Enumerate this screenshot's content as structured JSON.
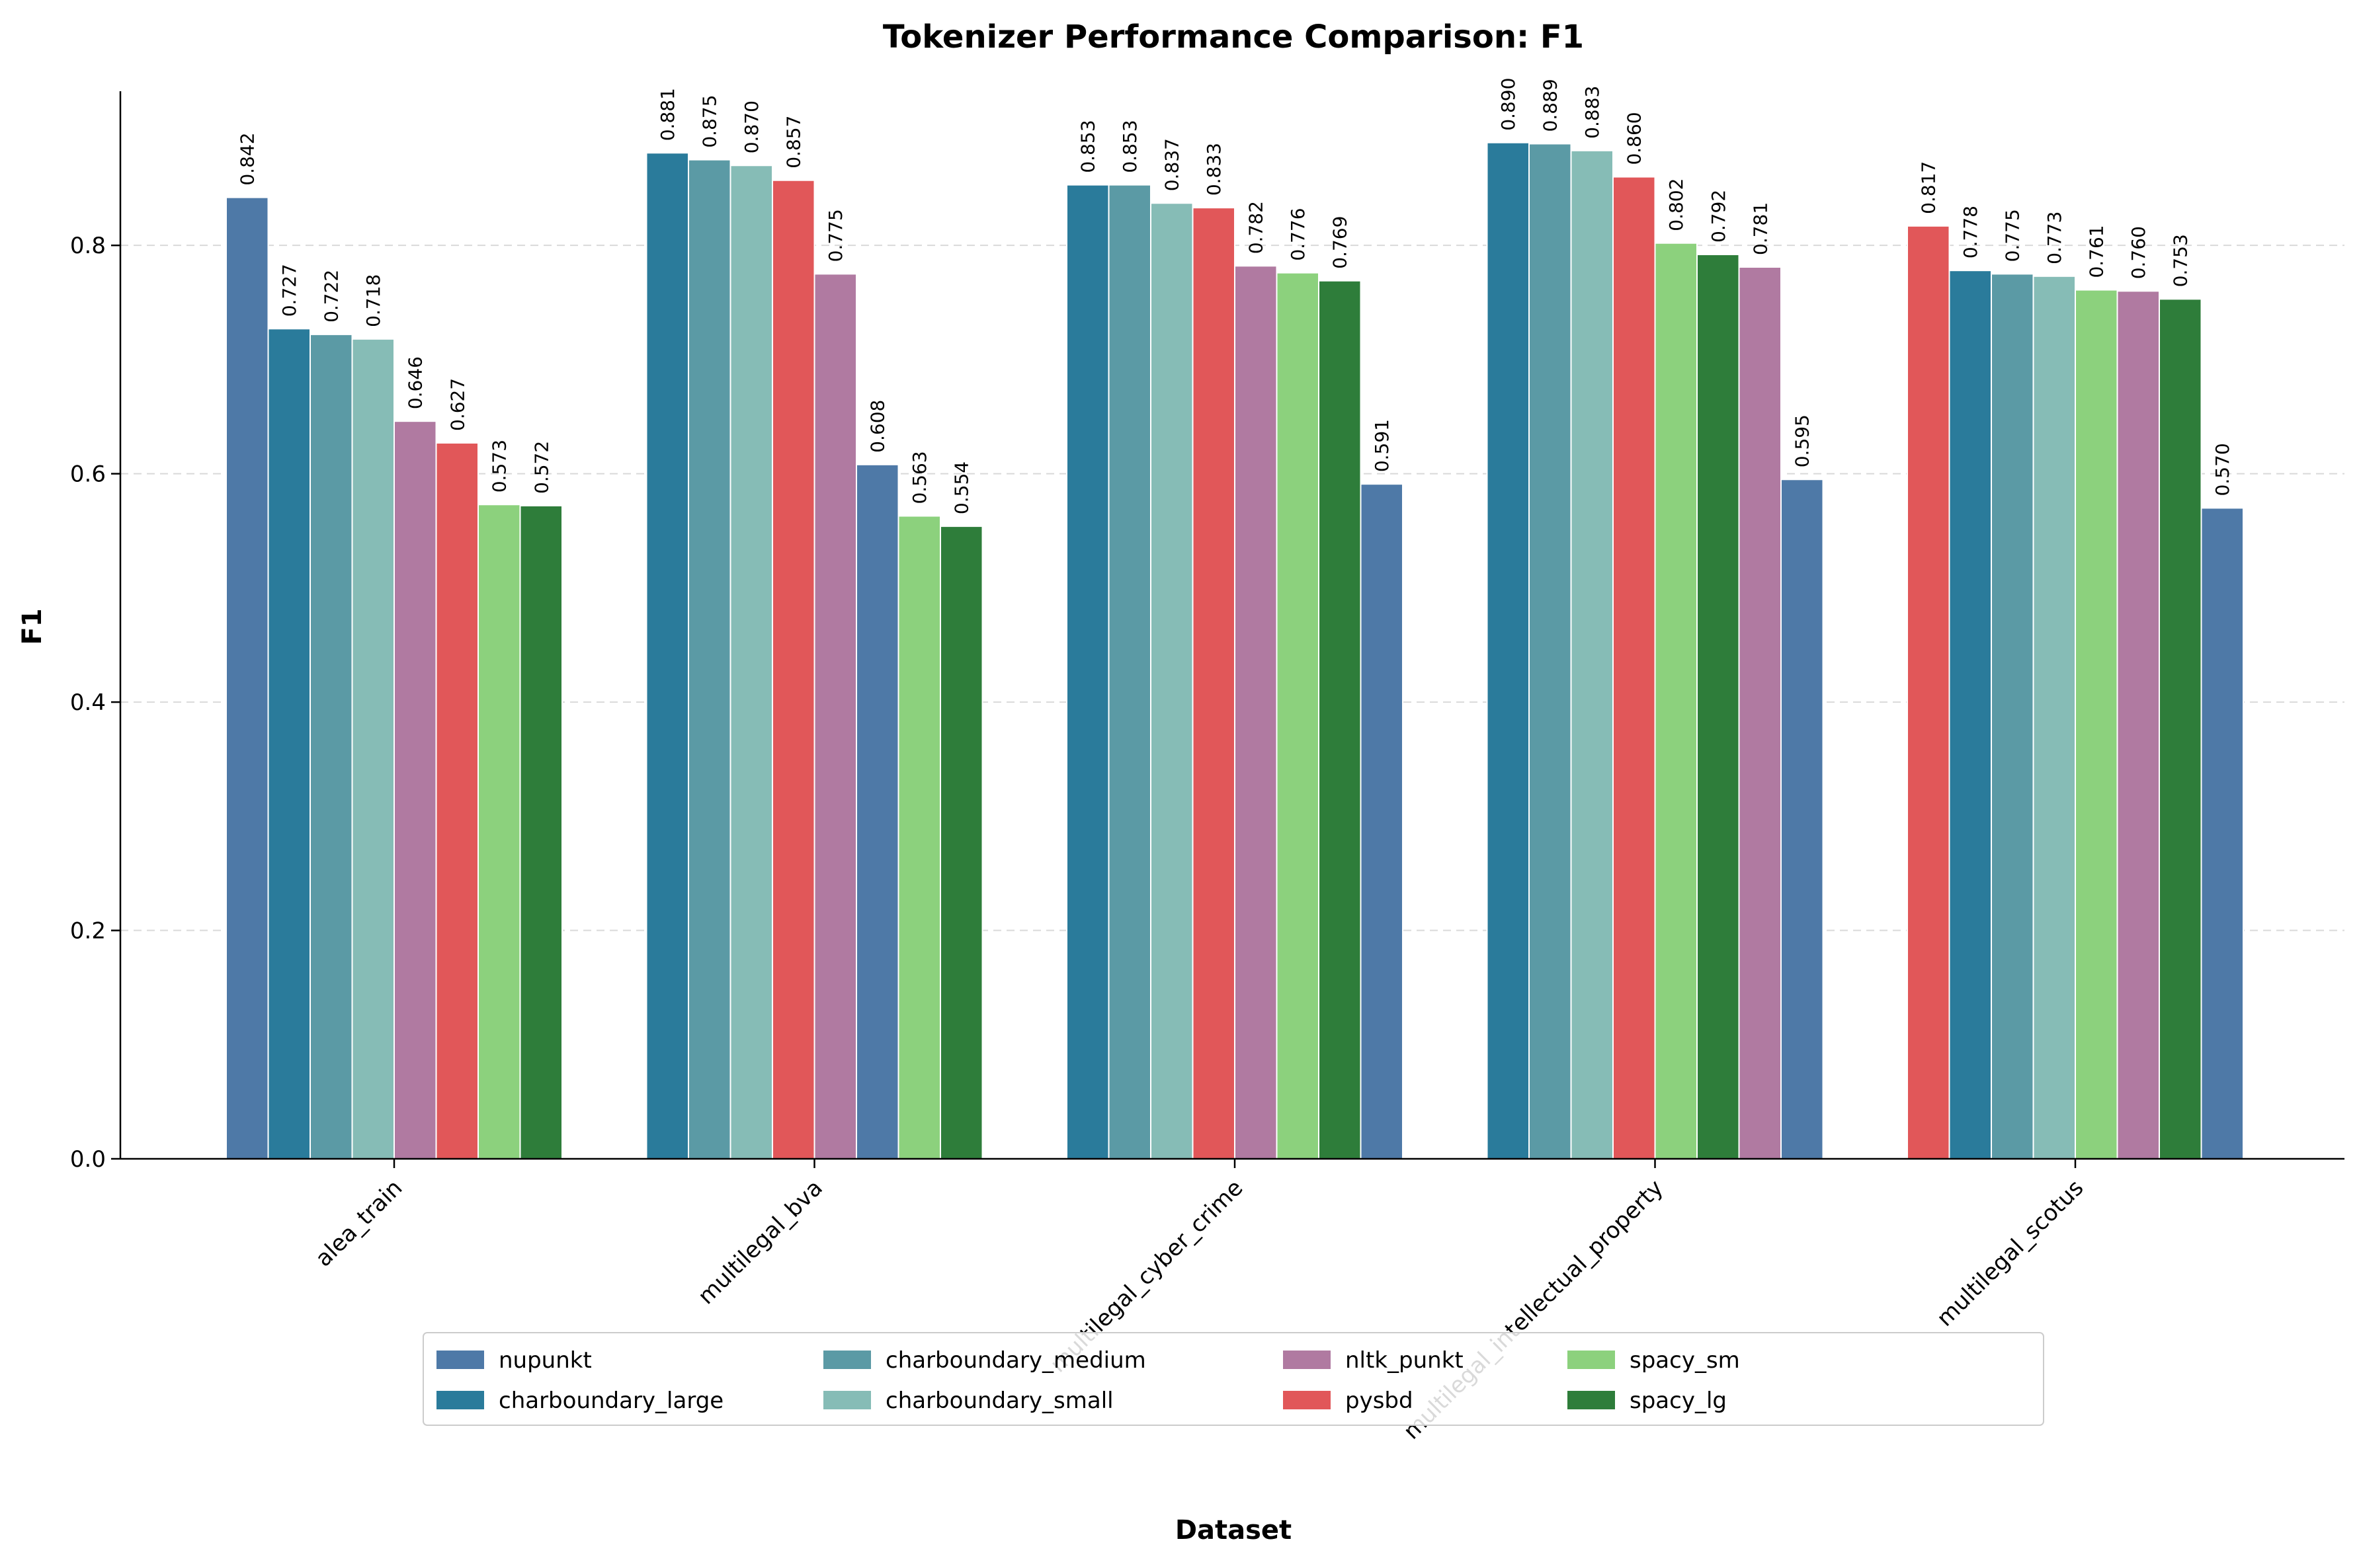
{
  "chart_data": {
    "type": "bar",
    "title": "Tokenizer Performance Comparison: F1",
    "xlabel": "Dataset",
    "ylabel": "F1",
    "ylim": [
      0,
      0.935
    ],
    "yticks": [
      "0.0",
      "0.2",
      "0.4",
      "0.6",
      "0.8"
    ],
    "grid": "y, dashed",
    "legend_position": "below plot, 5 columns",
    "legend": [
      {
        "name": "nupunkt",
        "color": "#4e79a7"
      },
      {
        "name": "charboundary_large",
        "color": "#2a7b9b"
      },
      {
        "name": "charboundary_medium",
        "color": "#5b9aa5"
      },
      {
        "name": "charboundary_small",
        "color": "#86bcb6"
      },
      {
        "name": "nltk_punkt",
        "color": "#b07aa1"
      },
      {
        "name": "pysbd",
        "color": "#e15759"
      },
      {
        "name": "spacy_sm",
        "color": "#8cd17d"
      },
      {
        "name": "spacy_lg",
        "color": "#2e7d3a"
      }
    ],
    "groups": [
      {
        "category": "alea_train",
        "bars": [
          {
            "series": "nupunkt",
            "value": 0.842,
            "label": "0.842"
          },
          {
            "series": "charboundary_large",
            "value": 0.727,
            "label": "0.727"
          },
          {
            "series": "charboundary_medium",
            "value": 0.722,
            "label": "0.722"
          },
          {
            "series": "charboundary_small",
            "value": 0.718,
            "label": "0.718"
          },
          {
            "series": "nltk_punkt",
            "value": 0.646,
            "label": "0.646"
          },
          {
            "series": "pysbd",
            "value": 0.627,
            "label": "0.627"
          },
          {
            "series": "spacy_sm",
            "value": 0.573,
            "label": "0.573"
          },
          {
            "series": "spacy_lg",
            "value": 0.572,
            "label": "0.572"
          }
        ]
      },
      {
        "category": "multilegal_bva",
        "bars": [
          {
            "series": "charboundary_large",
            "value": 0.881,
            "label": "0.881"
          },
          {
            "series": "charboundary_medium",
            "value": 0.875,
            "label": "0.875"
          },
          {
            "series": "charboundary_small",
            "value": 0.87,
            "label": "0.870"
          },
          {
            "series": "pysbd",
            "value": 0.857,
            "label": "0.857"
          },
          {
            "series": "nltk_punkt",
            "value": 0.775,
            "label": "0.775"
          },
          {
            "series": "nupunkt",
            "value": 0.608,
            "label": "0.608"
          },
          {
            "series": "spacy_sm",
            "value": 0.563,
            "label": "0.563"
          },
          {
            "series": "spacy_lg",
            "value": 0.554,
            "label": "0.554"
          }
        ]
      },
      {
        "category": "multilegal_cyber_crime",
        "bars": [
          {
            "series": "charboundary_large",
            "value": 0.853,
            "label": "0.853"
          },
          {
            "series": "charboundary_medium",
            "value": 0.853,
            "label": "0.853"
          },
          {
            "series": "charboundary_small",
            "value": 0.837,
            "label": "0.837"
          },
          {
            "series": "pysbd",
            "value": 0.833,
            "label": "0.833"
          },
          {
            "series": "nltk_punkt",
            "value": 0.782,
            "label": "0.782"
          },
          {
            "series": "spacy_sm",
            "value": 0.776,
            "label": "0.776"
          },
          {
            "series": "spacy_lg",
            "value": 0.769,
            "label": "0.769"
          },
          {
            "series": "nupunkt",
            "value": 0.591,
            "label": "0.591"
          }
        ]
      },
      {
        "category": "multilegal_intellectual_property",
        "bars": [
          {
            "series": "charboundary_large",
            "value": 0.89,
            "label": "0.890"
          },
          {
            "series": "charboundary_medium",
            "value": 0.889,
            "label": "0.889"
          },
          {
            "series": "charboundary_small",
            "value": 0.883,
            "label": "0.883"
          },
          {
            "series": "pysbd",
            "value": 0.86,
            "label": "0.860"
          },
          {
            "series": "spacy_sm",
            "value": 0.802,
            "label": "0.802"
          },
          {
            "series": "spacy_lg",
            "value": 0.792,
            "label": "0.792"
          },
          {
            "series": "nltk_punkt",
            "value": 0.781,
            "label": "0.781"
          },
          {
            "series": "nupunkt",
            "value": 0.595,
            "label": "0.595"
          }
        ]
      },
      {
        "category": "multilegal_scotus",
        "bars": [
          {
            "series": "pysbd",
            "value": 0.817,
            "label": "0.817"
          },
          {
            "series": "charboundary_large",
            "value": 0.778,
            "label": "0.778"
          },
          {
            "series": "charboundary_medium",
            "value": 0.775,
            "label": "0.775"
          },
          {
            "series": "charboundary_small",
            "value": 0.773,
            "label": "0.773"
          },
          {
            "series": "spacy_sm",
            "value": 0.761,
            "label": "0.761"
          },
          {
            "series": "nltk_punkt",
            "value": 0.76,
            "label": "0.760"
          },
          {
            "series": "spacy_lg",
            "value": 0.753,
            "label": "0.753"
          },
          {
            "series": "nupunkt",
            "value": 0.57,
            "label": "0.570"
          }
        ]
      }
    ]
  }
}
